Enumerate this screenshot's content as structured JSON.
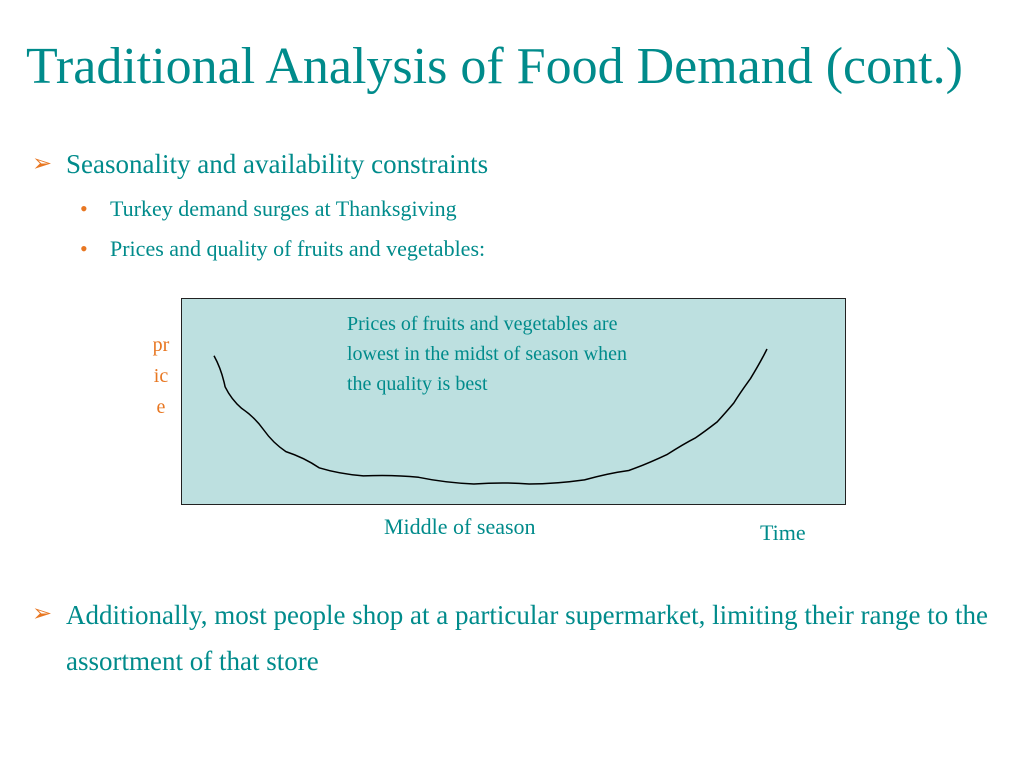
{
  "slide": {
    "title": "Traditional Analysis of Food Demand (cont.)",
    "bullets": [
      {
        "text": "Seasonality and availability constraints",
        "sub": [
          "Turkey demand surges at Thanksgiving",
          "Prices and quality of fruits and vegetables:"
        ]
      },
      {
        "text": "Additionally, most people shop at a particular supermarket,  limiting their range to the assortment  of that store"
      }
    ],
    "arrow_glyph": "➢",
    "dot_glyph": "•"
  },
  "chart_data": {
    "type": "line",
    "title": "",
    "annotation": "Prices of fruits and vegetables are lowest in the midst of season when the quality is best",
    "ylabel": "price",
    "x_label_mid": "Middle of season",
    "xlabel": "Time",
    "series": [
      {
        "x": [
          0.0,
          0.02,
          0.05,
          0.09,
          0.13,
          0.19,
          0.27,
          0.37,
          0.47,
          0.57,
          0.67,
          0.75,
          0.82,
          0.87,
          0.91,
          0.94,
          0.97,
          1.0
        ],
        "values": [
          0.95,
          0.72,
          0.56,
          0.4,
          0.24,
          0.12,
          0.06,
          0.05,
          0.0,
          0.0,
          0.03,
          0.1,
          0.22,
          0.34,
          0.46,
          0.6,
          0.78,
          1.0
        ]
      }
    ],
    "colors": {
      "background": "#bde0e0",
      "line": "#000000",
      "text": "#008b8b",
      "accent": "#e87722"
    },
    "grid": false,
    "legend": "none"
  }
}
